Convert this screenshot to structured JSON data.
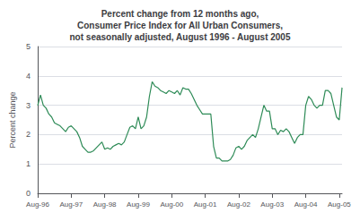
{
  "chart_data": {
    "type": "line",
    "title": "Percent change from 12 months ago,\nConsumer Price Index for All Urban Consumers,\nnot seasonally adjusted, August 1996 - August 2005",
    "y_label": "Percent change",
    "categories": [
      "Aug-96",
      null,
      null,
      null,
      null,
      null,
      null,
      null,
      null,
      null,
      null,
      null,
      "Aug-97",
      null,
      null,
      null,
      null,
      null,
      null,
      null,
      null,
      null,
      null,
      null,
      "Aug-98",
      null,
      null,
      null,
      null,
      null,
      null,
      null,
      null,
      null,
      null,
      null,
      "Aug-99",
      null,
      null,
      null,
      null,
      null,
      null,
      null,
      null,
      null,
      null,
      null,
      "Aug-00",
      null,
      null,
      null,
      null,
      null,
      null,
      null,
      null,
      null,
      null,
      null,
      "Aug-01",
      null,
      null,
      null,
      null,
      null,
      null,
      null,
      null,
      null,
      null,
      null,
      "Aug-02",
      null,
      null,
      null,
      null,
      null,
      null,
      null,
      null,
      null,
      null,
      null,
      "Aug-03",
      null,
      null,
      null,
      null,
      null,
      null,
      null,
      null,
      null,
      null,
      null,
      "Aug-04",
      null,
      null,
      null,
      null,
      null,
      null,
      null,
      null,
      null,
      null,
      null,
      "Aug-05",
      null
    ],
    "values": [
      2.99,
      3.35,
      3.0,
      2.9,
      2.7,
      2.6,
      2.4,
      2.35,
      2.3,
      2.2,
      2.1,
      2.25,
      2.3,
      2.2,
      2.1,
      1.9,
      1.6,
      1.5,
      1.4,
      1.4,
      1.45,
      1.55,
      1.65,
      1.75,
      1.5,
      1.55,
      1.5,
      1.6,
      1.65,
      1.7,
      1.65,
      1.75,
      2.0,
      2.25,
      2.3,
      2.2,
      2.6,
      2.2,
      2.3,
      2.6,
      3.3,
      3.8,
      3.65,
      3.6,
      3.5,
      3.45,
      3.4,
      3.5,
      3.45,
      3.4,
      3.5,
      3.35,
      3.6,
      3.55,
      3.55,
      3.4,
      3.2,
      3.0,
      2.85,
      2.7,
      2.7,
      2.7,
      2.7,
      1.6,
      1.2,
      1.2,
      1.1,
      1.1,
      1.1,
      1.15,
      1.3,
      1.55,
      1.6,
      1.5,
      1.6,
      1.8,
      1.9,
      2.0,
      1.9,
      2.2,
      2.6,
      3.0,
      2.8,
      2.8,
      2.2,
      2.2,
      2.0,
      2.15,
      2.1,
      2.2,
      2.1,
      1.9,
      1.7,
      1.9,
      2.0,
      2.0,
      3.0,
      3.3,
      3.2,
      3.0,
      2.9,
      3.0,
      3.0,
      3.5,
      3.5,
      3.4,
      3.0,
      2.6,
      2.5,
      3.6
    ],
    "color": "#2e8b57",
    "ylim": [
      0,
      5
    ],
    "yticks": [
      0,
      1,
      2,
      3,
      4,
      5
    ],
    "grid": true
  }
}
